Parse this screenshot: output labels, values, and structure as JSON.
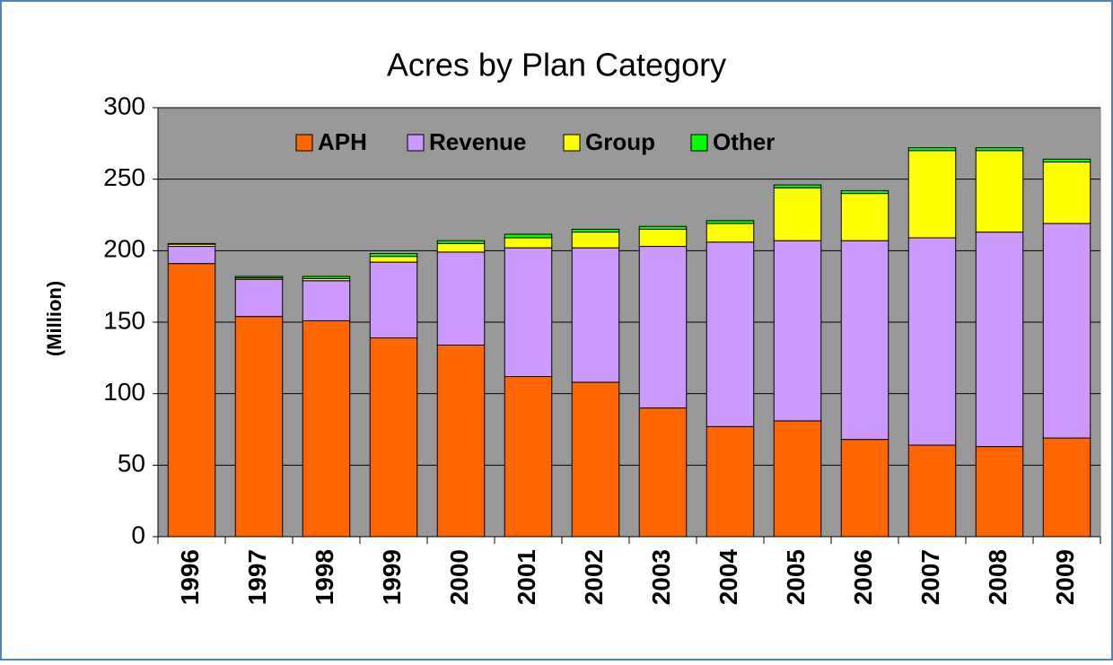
{
  "chart_data": {
    "type": "stacked_bar",
    "title": "Acres by Plan Category",
    "y_label": "(Million)",
    "categories": [
      "1996",
      "1997",
      "1998",
      "1999",
      "2000",
      "2001",
      "2002",
      "2003",
      "2004",
      "2005",
      "2006",
      "2007",
      "2008",
      "2009"
    ],
    "series": [
      {
        "name": "APH",
        "color": "#ff6600",
        "values": [
          191,
          154,
          151,
          139,
          134,
          112,
          108,
          90,
          77,
          81,
          68,
          64,
          63,
          69
        ]
      },
      {
        "name": "Revenue",
        "color": "#cc99ff",
        "values": [
          12,
          26,
          28,
          53,
          65,
          90,
          94,
          113,
          129,
          126,
          139,
          145,
          150,
          150
        ]
      },
      {
        "name": "Group",
        "color": "#ffff00",
        "values": [
          1.5,
          1,
          1.5,
          4,
          6,
          7,
          11,
          12,
          13,
          37,
          33,
          61,
          57,
          43
        ]
      },
      {
        "name": "Other",
        "color": "#00ff00",
        "values": [
          0.5,
          1,
          1.5,
          2,
          2,
          2.5,
          2,
          2,
          2,
          2,
          2,
          2,
          2,
          2
        ]
      }
    ],
    "ylim": [
      0,
      300
    ],
    "yticks": [
      0,
      50,
      100,
      150,
      200,
      250,
      300
    ],
    "grid": true,
    "legend": "top"
  }
}
